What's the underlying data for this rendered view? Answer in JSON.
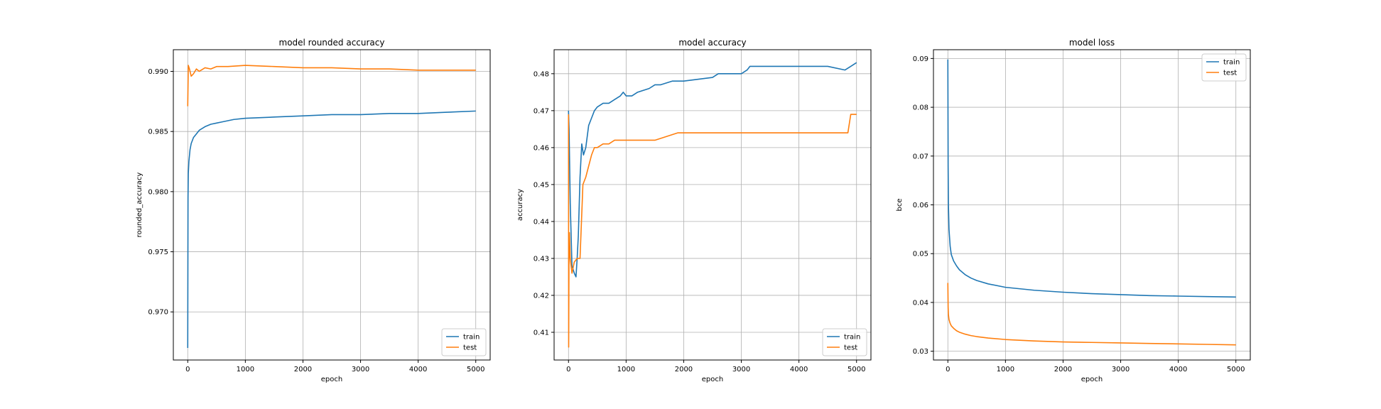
{
  "chart_data": [
    {
      "type": "line",
      "title": "model rounded accuracy",
      "xlabel": "epoch",
      "ylabel": "rounded_accuracy",
      "xlim": [
        -250,
        5250
      ],
      "ylim": [
        0.966,
        0.9918
      ],
      "xticks": [
        0,
        1000,
        2000,
        3000,
        4000,
        5000
      ],
      "yticks": [
        0.97,
        0.975,
        0.98,
        0.985,
        0.99
      ],
      "ytick_labels": [
        "0.970",
        "0.975",
        "0.980",
        "0.985",
        "0.990"
      ],
      "grid": true,
      "legend": "lower-right",
      "series": [
        {
          "name": "train",
          "color": "#1f77b4",
          "x": [
            0,
            5,
            10,
            20,
            40,
            60,
            100,
            150,
            200,
            300,
            400,
            500,
            600,
            800,
            1000,
            1500,
            2000,
            2500,
            3000,
            3500,
            4000,
            4500,
            5000
          ],
          "y": [
            0.967,
            0.9795,
            0.9815,
            0.9825,
            0.9835,
            0.984,
            0.9845,
            0.9848,
            0.9851,
            0.9854,
            0.9856,
            0.9857,
            0.9858,
            0.986,
            0.9861,
            0.9862,
            0.9863,
            0.9864,
            0.9864,
            0.9865,
            0.9865,
            0.9866,
            0.9867
          ]
        },
        {
          "name": "test",
          "color": "#ff7f0e",
          "x": [
            0,
            10,
            30,
            60,
            100,
            150,
            200,
            300,
            400,
            500,
            700,
            1000,
            1500,
            2000,
            2500,
            3000,
            3500,
            4000,
            4500,
            5000
          ],
          "y": [
            0.9871,
            0.9905,
            0.9902,
            0.9896,
            0.9898,
            0.9902,
            0.99,
            0.9903,
            0.9902,
            0.9904,
            0.9904,
            0.9905,
            0.9904,
            0.9903,
            0.9903,
            0.9902,
            0.9902,
            0.9901,
            0.9901,
            0.9901
          ]
        }
      ]
    },
    {
      "type": "line",
      "title": "model accuracy",
      "xlabel": "epoch",
      "ylabel": "accuracy",
      "xlim": [
        -250,
        5250
      ],
      "ylim": [
        0.4025,
        0.4865
      ],
      "xticks": [
        0,
        1000,
        2000,
        3000,
        4000,
        5000
      ],
      "yticks": [
        0.41,
        0.42,
        0.43,
        0.44,
        0.45,
        0.46,
        0.47,
        0.48
      ],
      "ytick_labels": [
        "0.41",
        "0.42",
        "0.43",
        "0.44",
        "0.45",
        "0.46",
        "0.47",
        "0.48"
      ],
      "grid": true,
      "legend": "lower-right",
      "series": [
        {
          "name": "train",
          "color": "#1f77b4",
          "x": [
            0,
            10,
            30,
            60,
            100,
            130,
            150,
            170,
            200,
            230,
            260,
            300,
            350,
            400,
            450,
            500,
            600,
            700,
            800,
            900,
            950,
            1000,
            1100,
            1200,
            1400,
            1500,
            1600,
            1800,
            2000,
            2500,
            2600,
            2700,
            3000,
            3100,
            3150,
            3200,
            3500,
            4000,
            4500,
            4800,
            4900,
            5000
          ],
          "y": [
            0.47,
            0.465,
            0.445,
            0.428,
            0.426,
            0.425,
            0.43,
            0.436,
            0.452,
            0.461,
            0.458,
            0.46,
            0.466,
            0.468,
            0.47,
            0.471,
            0.472,
            0.472,
            0.473,
            0.474,
            0.475,
            0.474,
            0.474,
            0.475,
            0.476,
            0.477,
            0.477,
            0.478,
            0.478,
            0.479,
            0.48,
            0.48,
            0.48,
            0.481,
            0.482,
            0.482,
            0.482,
            0.482,
            0.482,
            0.481,
            0.482,
            0.483
          ]
        },
        {
          "name": "test",
          "color": "#ff7f0e",
          "x": [
            0,
            3,
            8,
            15,
            30,
            60,
            100,
            150,
            200,
            250,
            300,
            350,
            400,
            450,
            500,
            600,
            700,
            800,
            900,
            1000,
            1500,
            1900,
            2000,
            2500,
            3000,
            3500,
            4000,
            4500,
            4850,
            4900,
            5000
          ],
          "y": [
            0.469,
            0.406,
            0.428,
            0.437,
            0.43,
            0.426,
            0.429,
            0.43,
            0.43,
            0.45,
            0.452,
            0.455,
            0.458,
            0.46,
            0.46,
            0.461,
            0.461,
            0.462,
            0.462,
            0.462,
            0.462,
            0.464,
            0.464,
            0.464,
            0.464,
            0.464,
            0.464,
            0.464,
            0.464,
            0.469,
            0.469
          ]
        }
      ]
    },
    {
      "type": "line",
      "title": "model loss",
      "xlabel": "epoch",
      "ylabel": "bce",
      "xlim": [
        -250,
        5250
      ],
      "ylim": [
        0.0282,
        0.0918
      ],
      "xticks": [
        0,
        1000,
        2000,
        3000,
        4000,
        5000
      ],
      "yticks": [
        0.03,
        0.04,
        0.05,
        0.06,
        0.07,
        0.08,
        0.09
      ],
      "ytick_labels": [
        "0.03",
        "0.04",
        "0.05",
        "0.06",
        "0.07",
        "0.08",
        "0.09"
      ],
      "grid": true,
      "legend": "upper-right",
      "series": [
        {
          "name": "train",
          "color": "#1f77b4",
          "x": [
            0,
            5,
            10,
            20,
            40,
            60,
            100,
            150,
            200,
            300,
            400,
            500,
            700,
            1000,
            1500,
            2000,
            2500,
            3000,
            3500,
            4000,
            4500,
            5000
          ],
          "y": [
            0.0898,
            0.068,
            0.06,
            0.055,
            0.0515,
            0.0498,
            0.0485,
            0.0475,
            0.0467,
            0.0457,
            0.045,
            0.0445,
            0.0438,
            0.0431,
            0.0425,
            0.0421,
            0.0418,
            0.0416,
            0.0414,
            0.0413,
            0.0412,
            0.0411
          ]
        },
        {
          "name": "test",
          "color": "#ff7f0e",
          "x": [
            0,
            5,
            10,
            20,
            40,
            60,
            100,
            150,
            200,
            300,
            400,
            500,
            700,
            1000,
            1500,
            2000,
            2500,
            3000,
            3500,
            4000,
            4500,
            5000
          ],
          "y": [
            0.044,
            0.039,
            0.0375,
            0.0365,
            0.0357,
            0.0352,
            0.0347,
            0.0342,
            0.0339,
            0.0335,
            0.0332,
            0.033,
            0.0327,
            0.0324,
            0.0321,
            0.0319,
            0.0318,
            0.0317,
            0.0316,
            0.0315,
            0.0314,
            0.0313
          ]
        }
      ]
    }
  ]
}
